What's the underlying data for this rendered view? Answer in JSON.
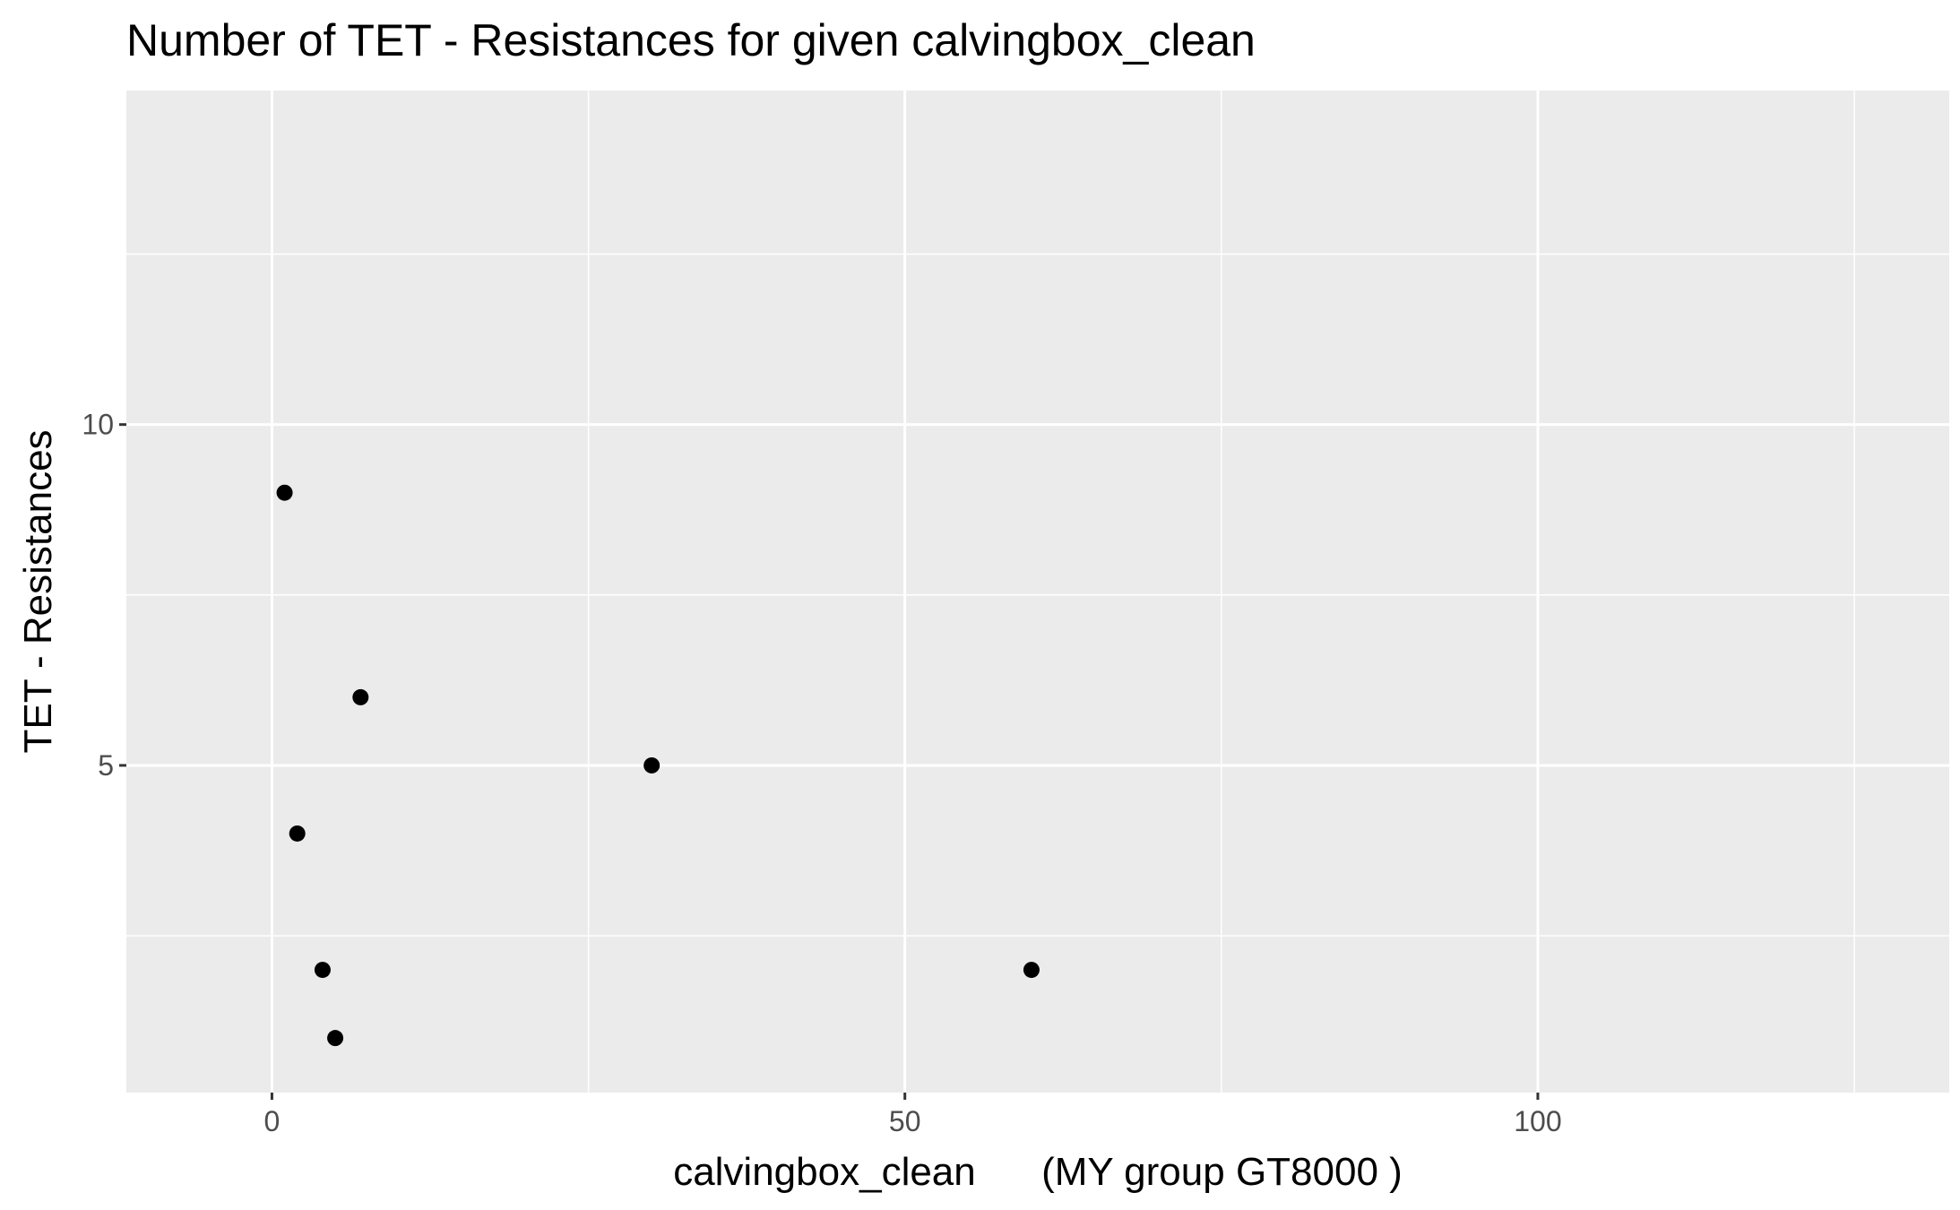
{
  "chart_data": {
    "type": "scatter",
    "title": "Number of TET - Resistances for given calvingbox_clean",
    "xlabel": "calvingbox_clean      (MY group GT8000 )",
    "ylabel": "TET - Resistances",
    "xlim": [
      -11.5,
      132.5
    ],
    "ylim": [
      0.2,
      14.9
    ],
    "x_ticks": [
      0,
      50,
      100
    ],
    "y_ticks": [
      5,
      10
    ],
    "x_minor_ticks": [
      25,
      75,
      125
    ],
    "y_minor_ticks": [
      2.5,
      7.5,
      12.5
    ],
    "grid": true,
    "panel_background": "#ebebeb",
    "grid_color": "#ffffff",
    "point_color": "#000000",
    "points": [
      {
        "x": 1,
        "y": 9
      },
      {
        "x": 7,
        "y": 6
      },
      {
        "x": 30,
        "y": 5
      },
      {
        "x": 2,
        "y": 4
      },
      {
        "x": 4,
        "y": 2
      },
      {
        "x": 60,
        "y": 2
      },
      {
        "x": 5,
        "y": 1
      }
    ]
  }
}
